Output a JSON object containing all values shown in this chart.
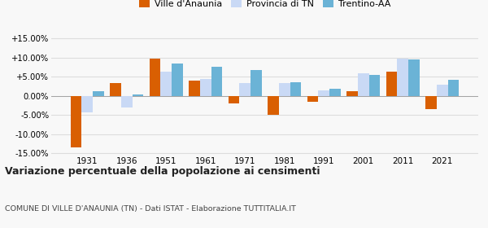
{
  "years": [
    1931,
    1936,
    1951,
    1961,
    1971,
    1981,
    1991,
    2001,
    2011,
    2021
  ],
  "ville_anaunia": [
    -0.136,
    0.034,
    0.097,
    0.04,
    -0.021,
    -0.049,
    -0.016,
    0.011,
    0.063,
    -0.034
  ],
  "provincia_tn": [
    -0.044,
    -0.03,
    0.064,
    0.043,
    0.034,
    0.033,
    0.015,
    0.059,
    0.097,
    0.03
  ],
  "trentino_aa": [
    0.012,
    0.004,
    0.085,
    0.076,
    0.068,
    0.035,
    0.019,
    0.055,
    0.094,
    0.041
  ],
  "color_ville": "#d95f02",
  "color_provincia": "#c9d9f5",
  "color_trentino": "#6bb3d6",
  "title": "Variazione percentuale della popolazione ai censimenti",
  "subtitle": "COMUNE DI VILLE D'ANAUNIA (TN) - Dati ISTAT - Elaborazione TUTTITALIA.IT",
  "legend_labels": [
    "Ville d'Anaunia",
    "Provincia di TN",
    "Trentino-AA"
  ],
  "ylim": [
    -0.155,
    0.155
  ],
  "yticks": [
    -0.15,
    -0.1,
    -0.05,
    0.0,
    0.05,
    0.1,
    0.15
  ],
  "bg_color": "#f8f8f8",
  "grid_color": "#dddddd",
  "bar_width": 0.28
}
